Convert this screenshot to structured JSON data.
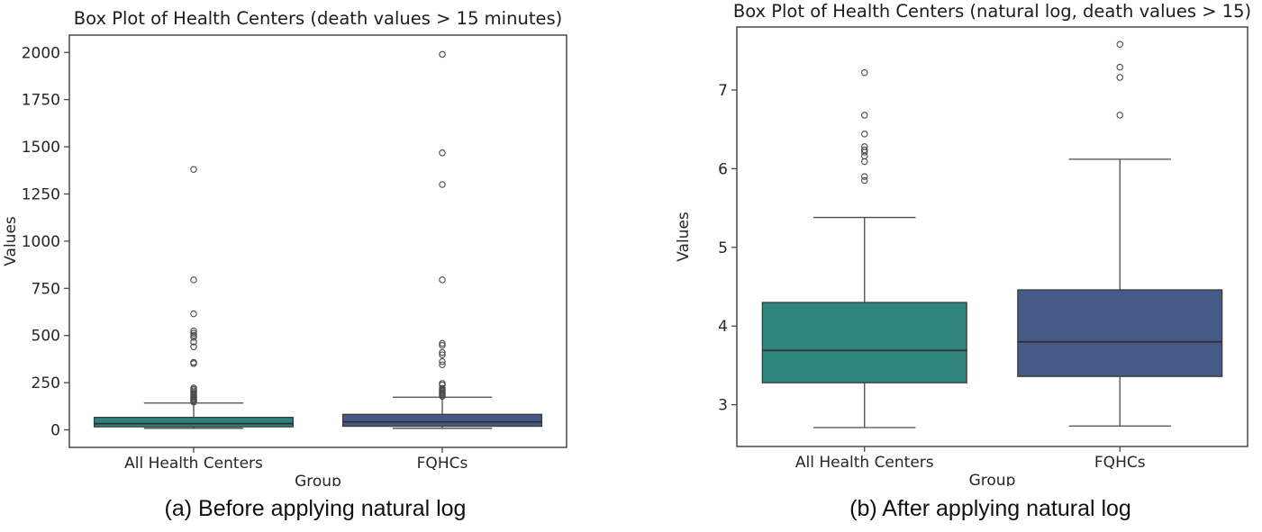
{
  "figure": {
    "captions": [
      "(a) Before applying natural log",
      "(b) After applying natural log"
    ]
  },
  "colors": {
    "teal_box": "#2f847e",
    "navy_box": "#475a87",
    "frame": "#3d3d3d",
    "background": "#ffffff"
  },
  "chart_data": [
    {
      "type": "box",
      "title": "Box Plot of Health Centers (death values > 15 minutes)",
      "xlabel": "Group",
      "ylabel": "Values",
      "categories": [
        "All Health Centers",
        "FQHCs"
      ],
      "yticks": [
        0,
        250,
        500,
        750,
        1000,
        1250,
        1500,
        1750,
        2000
      ],
      "ylim": [
        -93,
        2092
      ],
      "grid": false,
      "legend": "none",
      "boxes": [
        {
          "label": "All Health Centers",
          "color": "#2f847e",
          "whisker_low": 8,
          "q1": 16,
          "median": 33,
          "q3": 66,
          "whisker_high": 142,
          "outliers": [
            147,
            153,
            159,
            165,
            171,
            177,
            184,
            191,
            199,
            207,
            215,
            222,
            351,
            358,
            440,
            466,
            490,
            501,
            512,
            524,
            615,
            795,
            1380
          ]
        },
        {
          "label": "FQHCs",
          "color": "#475a87",
          "whisker_low": 8,
          "q1": 19,
          "median": 42,
          "q3": 82,
          "whisker_high": 173,
          "outliers": [
            178,
            184,
            190,
            196,
            202,
            208,
            214,
            220,
            238,
            246,
            345,
            362,
            398,
            410,
            448,
            458,
            795,
            1300,
            1468,
            1990
          ]
        }
      ]
    },
    {
      "type": "box",
      "title": "Box Plot of Health Centers (natural log, death values > 15)",
      "xlabel": "Group",
      "ylabel": "Values",
      "categories": [
        "All Health Centers",
        "FQHCs"
      ],
      "yticks": [
        3,
        4,
        5,
        6,
        7
      ],
      "ylim": [
        2.47,
        7.8
      ],
      "grid": false,
      "legend": "none",
      "boxes": [
        {
          "label": "All Health Centers",
          "color": "#2f847e",
          "whisker_low": 2.71,
          "q1": 3.28,
          "median": 3.69,
          "q3": 4.3,
          "whisker_high": 5.38,
          "outliers": [
            5.85,
            5.9,
            6.09,
            6.16,
            6.21,
            6.24,
            6.28,
            6.44,
            6.68,
            7.22
          ]
        },
        {
          "label": "FQHCs",
          "color": "#475a87",
          "whisker_low": 2.73,
          "q1": 3.36,
          "median": 3.8,
          "q3": 4.46,
          "whisker_high": 6.12,
          "outliers": [
            6.68,
            7.16,
            7.29,
            7.58
          ]
        }
      ]
    }
  ]
}
